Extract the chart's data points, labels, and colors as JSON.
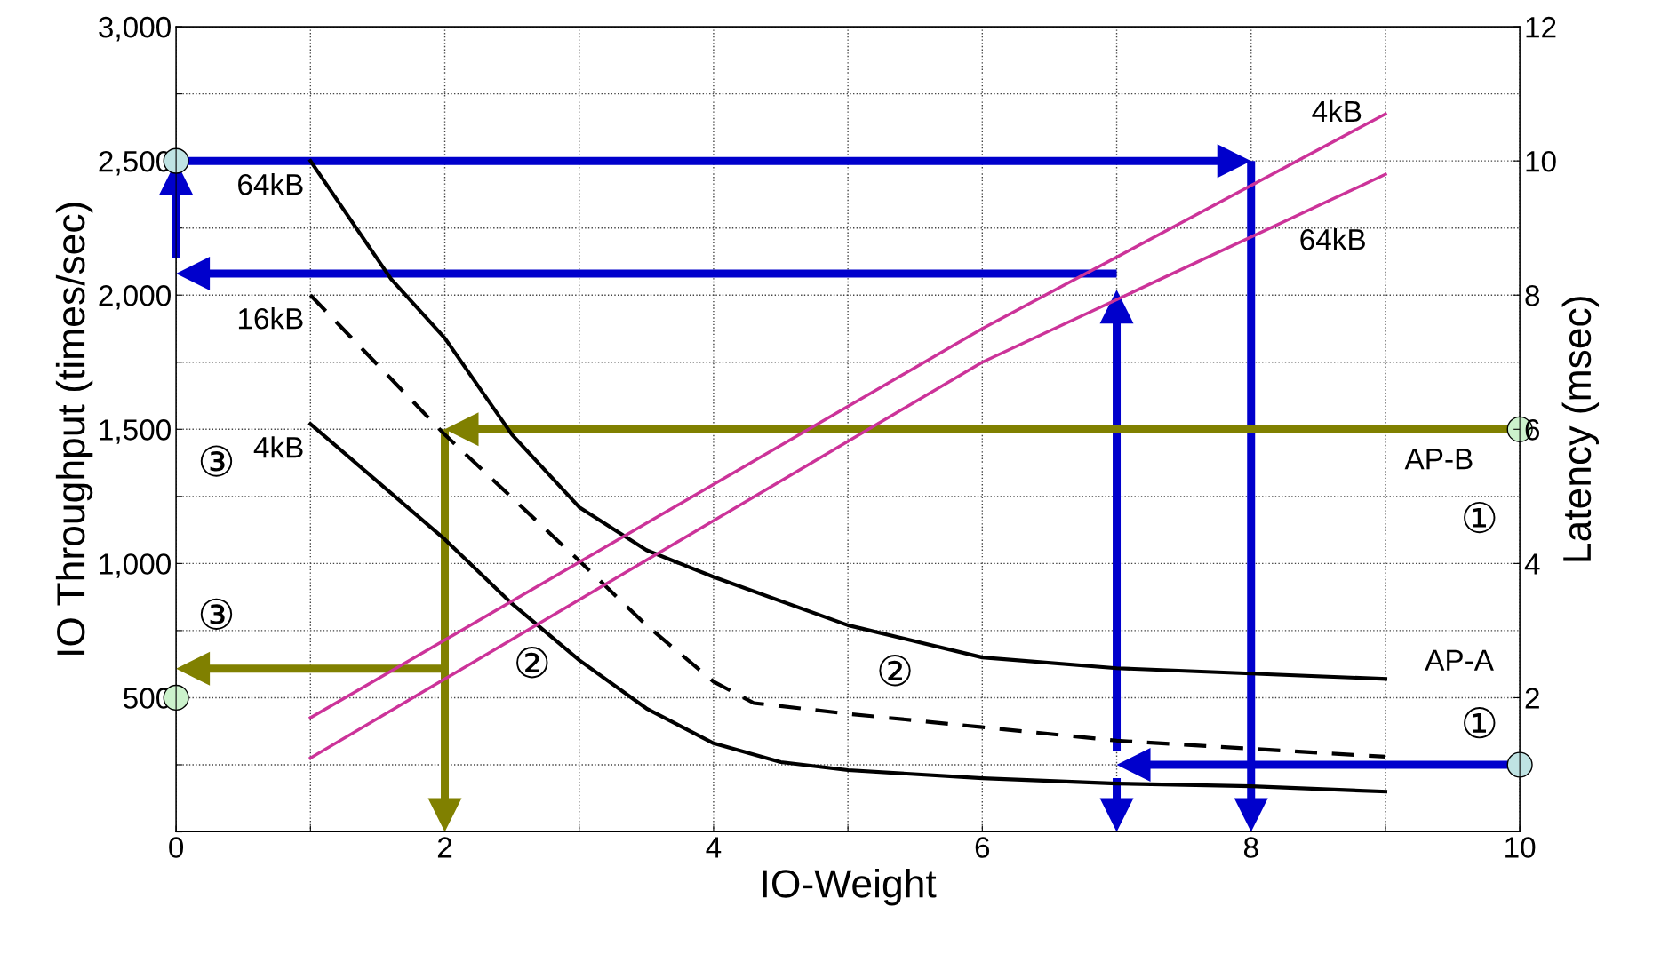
{
  "chart_data": {
    "type": "line",
    "xlabel": "IO-Weight",
    "ylabel": "IO Throughput (times/sec)",
    "y2label": "Latency (msec)",
    "xlim": [
      0,
      10
    ],
    "xticks": [
      0,
      {
        "value": 1,
        "label": null
      },
      2,
      {
        "value": 3,
        "label": null
      },
      4,
      {
        "value": 5,
        "label": null
      },
      6,
      {
        "value": 7,
        "label": null
      },
      8,
      {
        "value": 9,
        "label": null
      },
      10
    ],
    "ylim": [
      0,
      3000
    ],
    "yticks": [
      {
        "value": 0,
        "label": null
      },
      {
        "value": 250,
        "label": null
      },
      500,
      {
        "value": 750,
        "label": null
      },
      {
        "value": 1000,
        "label": "1,000"
      },
      {
        "value": 1250,
        "label": null
      },
      {
        "value": 1500,
        "label": "1,500"
      },
      {
        "value": 1750,
        "label": null
      },
      {
        "value": 2000,
        "label": "2,000"
      },
      {
        "value": 2250,
        "label": null
      },
      {
        "value": 2500,
        "label": "2,500"
      },
      {
        "value": 2750,
        "label": null
      },
      {
        "value": 3000,
        "label": "3,000"
      }
    ],
    "y2lim": [
      0,
      12
    ],
    "y2ticks": [
      2,
      4,
      6,
      8,
      10,
      12
    ],
    "grid": true,
    "legend": false,
    "marker": "none",
    "series": [
      {
        "name": "64kB",
        "color": "#000000",
        "line_style": "solid",
        "x": [
          1,
          1.6,
          2,
          2.5,
          3,
          3.5,
          4,
          5,
          6,
          7,
          8,
          9
        ],
        "values": [
          2500,
          2060,
          1840,
          1480,
          1210,
          1050,
          950,
          770,
          650,
          610,
          590,
          570
        ]
      },
      {
        "name": "16kB",
        "color": "#000000",
        "line_style": "dashed",
        "x": [
          1,
          2,
          3,
          3.5,
          4,
          4.3,
          5,
          6,
          7,
          8,
          9
        ],
        "values": [
          2000,
          1480,
          1010,
          770,
          560,
          480,
          440,
          390,
          340,
          310,
          280
        ]
      },
      {
        "name": "4kB",
        "color": "#000000",
        "line_style": "solid",
        "x": [
          1,
          2,
          2.5,
          3,
          3.5,
          4,
          4.5,
          5,
          6,
          7,
          8,
          9
        ],
        "values": [
          1520,
          1090,
          850,
          640,
          460,
          330,
          260,
          230,
          200,
          180,
          170,
          150
        ]
      },
      {
        "name": "4kB",
        "color": "#cc3399",
        "line_style": "solid",
        "axis": "y2",
        "x": [
          1,
          6,
          9
        ],
        "values": [
          1.7,
          7.5,
          10.7
        ]
      },
      {
        "name": "64kB",
        "color": "#cc3399",
        "line_style": "solid",
        "axis": "y2",
        "x": [
          1,
          6,
          9
        ],
        "values": [
          1.1,
          7.0,
          9.8
        ]
      }
    ],
    "annotations": [
      "③",
      "③",
      "①",
      "①",
      "②",
      "②",
      "AP-B",
      "AP-A"
    ]
  }
}
